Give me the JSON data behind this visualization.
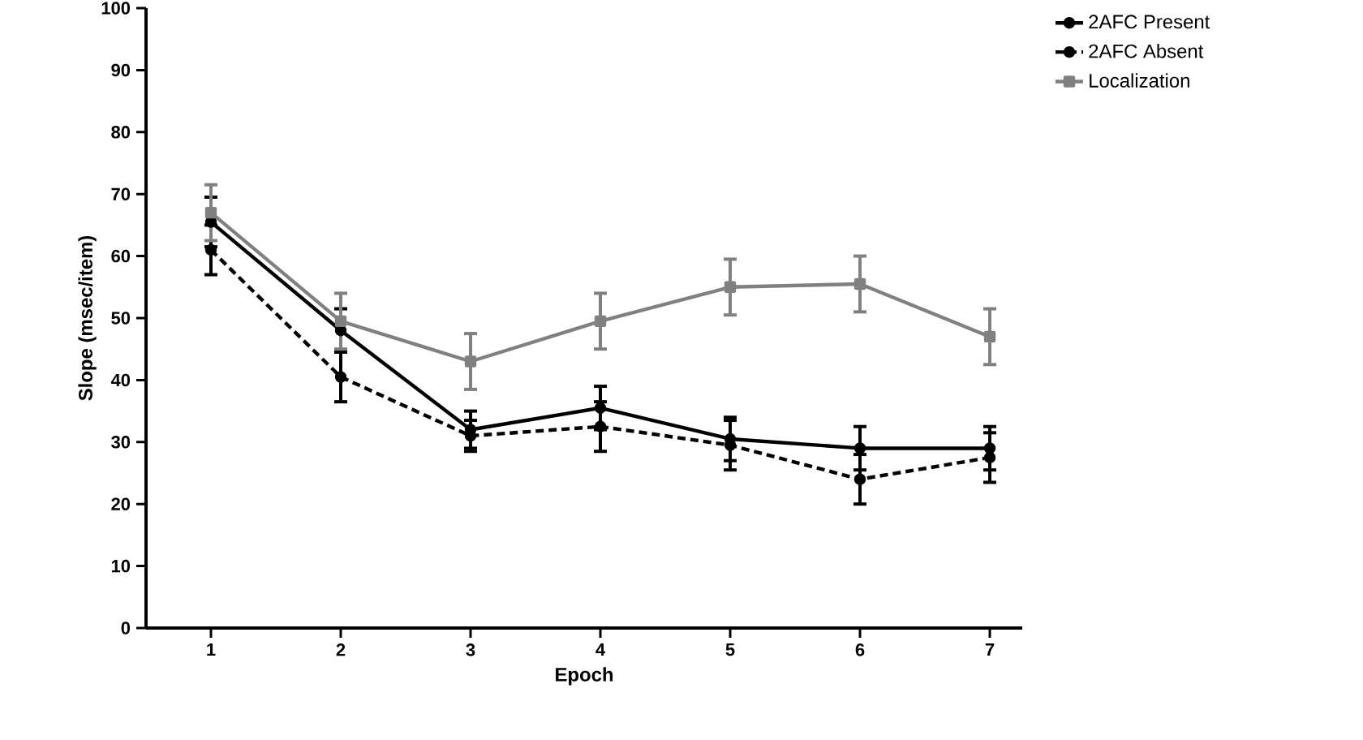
{
  "chart_data": {
    "type": "line",
    "xlabel": "Epoch",
    "ylabel": "Slope (msec/item)",
    "x": [
      1,
      2,
      3,
      4,
      5,
      6,
      7
    ],
    "xlim": [
      0.5,
      7.25
    ],
    "xticks": [
      1,
      2,
      3,
      4,
      5,
      6,
      7
    ],
    "ylim": [
      0,
      100
    ],
    "yticks": [
      0,
      10,
      20,
      30,
      40,
      50,
      60,
      70,
      80,
      90,
      100
    ],
    "grid": false,
    "legend": "top right",
    "series": [
      {
        "name": "2AFC Present",
        "color": "#000000",
        "marker": "circle",
        "line_style": "solid",
        "values": [
          65.5,
          48,
          32,
          35.5,
          30.5,
          29,
          29
        ],
        "errors": [
          4,
          3.5,
          3,
          3.5,
          3.5,
          3.5,
          3.5
        ]
      },
      {
        "name": "2AFC Absent",
        "color": "#000000",
        "marker": "circle",
        "line_style": "dashed",
        "values": [
          61,
          40.5,
          31,
          32.5,
          29.5,
          24,
          27.5
        ],
        "errors": [
          4,
          4,
          2.5,
          4,
          4,
          4,
          4
        ]
      },
      {
        "name": "Localization",
        "color": "#808080",
        "marker": "square",
        "line_style": "solid",
        "values": [
          67,
          49.5,
          43,
          49.5,
          55,
          55.5,
          47
        ],
        "errors": [
          4.5,
          4.5,
          4.5,
          4.5,
          4.5,
          4.5,
          4.5
        ]
      }
    ]
  }
}
